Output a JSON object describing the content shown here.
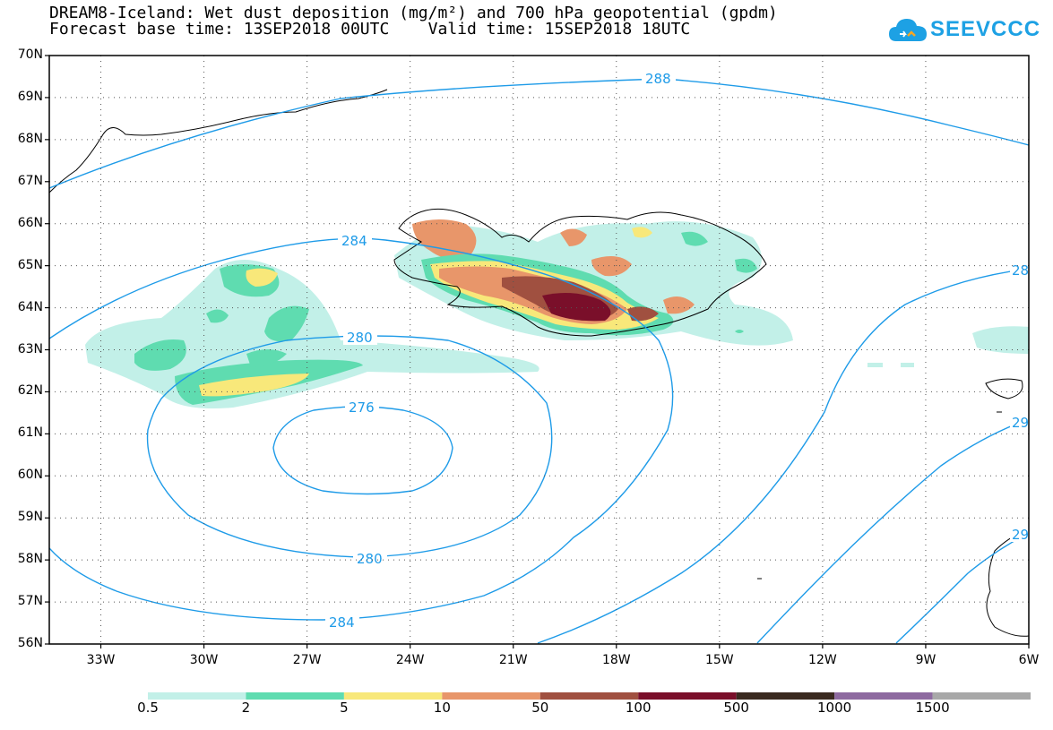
{
  "title": {
    "line1": "DREAM8-Iceland: Wet dust deposition (mg/m²) and 700 hPa geopotential (gpdm)",
    "line2": "Forecast base time: 13SEP2018 00UTC    Valid time: 15SEP2018 18UTC"
  },
  "logo": {
    "text": "SEEVCCC",
    "icon": "cloud-logo-icon",
    "color": "#1da1e4"
  },
  "map": {
    "lat_labels": [
      "70N",
      "69N",
      "68N",
      "67N",
      "66N",
      "65N",
      "64N",
      "63N",
      "62N",
      "61N",
      "60N",
      "59N",
      "58N",
      "57N",
      "56N"
    ],
    "lon_labels": [
      "33W",
      "30W",
      "27W",
      "24W",
      "21W",
      "18W",
      "15W",
      "12W",
      "9W",
      "6W"
    ],
    "lat_range": [
      56,
      70
    ],
    "lon_range": [
      -34.5,
      -6
    ],
    "grid": "dotted",
    "contour_color": "#1e9be8",
    "contour_labels": [
      "288",
      "284",
      "284",
      "280",
      "280",
      "276",
      "284",
      "28",
      "29",
      "29"
    ]
  },
  "colorbar": {
    "labels": [
      "0.5",
      "2",
      "5",
      "10",
      "50",
      "100",
      "500",
      "1000",
      "1500"
    ],
    "colors": [
      "#c2f0e8",
      "#5fdcb0",
      "#f8e87a",
      "#e8966a",
      "#a05040",
      "#7a0f2a",
      "#3a2a20",
      "#8e6aa0",
      "#a8a8a8"
    ]
  }
}
